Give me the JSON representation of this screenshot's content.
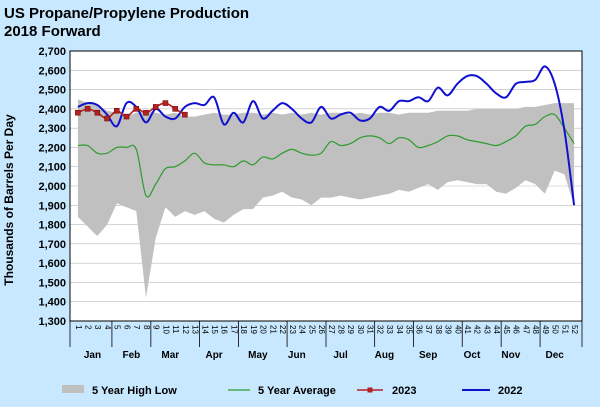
{
  "chart_data": {
    "type": "line",
    "title": "US Propane/Propylene Production",
    "subtitle": "2018 Forward",
    "ylabel": "Thousands of Barrels Per Day",
    "ylim": [
      1300,
      2700
    ],
    "yticks": [
      "1,300",
      "1,400",
      "1,500",
      "1,600",
      "1,700",
      "1,800",
      "1,900",
      "2,000",
      "2,100",
      "2,200",
      "2,300",
      "2,400",
      "2,500",
      "2,600",
      "2,700"
    ],
    "ytick_values": [
      1300,
      1400,
      1500,
      1600,
      1700,
      1800,
      1900,
      2000,
      2100,
      2200,
      2300,
      2400,
      2500,
      2600,
      2700
    ],
    "grid": true,
    "legend_position": "bottom",
    "week_labels": [
      "1",
      "2",
      "3",
      "4",
      "5",
      "6",
      "7",
      "8",
      "9",
      "10",
      "11",
      "12",
      "13",
      "14",
      "15",
      "16",
      "17",
      "18",
      "19",
      "20",
      "21",
      "22",
      "23",
      "24",
      "25",
      "26",
      "27",
      "28",
      "29",
      "30",
      "31",
      "32",
      "33",
      "34",
      "35",
      "36",
      "37",
      "38",
      "39",
      "40",
      "41",
      "42",
      "43",
      "44",
      "45",
      "46",
      "47",
      "48",
      "49",
      "50",
      "51",
      "52"
    ],
    "months": [
      {
        "label": "Jan",
        "week": 2.5
      },
      {
        "label": "Feb",
        "week": 6.5
      },
      {
        "label": "Mar",
        "week": 10.5
      },
      {
        "label": "Apr",
        "week": 15
      },
      {
        "label": "May",
        "week": 19.5
      },
      {
        "label": "Jun",
        "week": 23.5
      },
      {
        "label": "Jul",
        "week": 28
      },
      {
        "label": "Aug",
        "week": 32.5
      },
      {
        "label": "Sep",
        "week": 37
      },
      {
        "label": "Oct",
        "week": 41.5
      },
      {
        "label": "Nov",
        "week": 45.5
      },
      {
        "label": "Dec",
        "week": 50
      }
    ],
    "series": [
      {
        "name": "5 Year High Low",
        "kind": "band",
        "color": "#c0c0c0",
        "high": [
          2450,
          2430,
          2420,
          2390,
          2380,
          2360,
          2380,
          2390,
          2380,
          2370,
          2380,
          2360,
          2360,
          2370,
          2380,
          2370,
          2370,
          2380,
          2380,
          2370,
          2380,
          2370,
          2380,
          2370,
          2380,
          2370,
          2380,
          2380,
          2370,
          2380,
          2370,
          2380,
          2380,
          2370,
          2380,
          2380,
          2380,
          2390,
          2390,
          2390,
          2390,
          2400,
          2400,
          2400,
          2400,
          2400,
          2410,
          2410,
          2420,
          2430,
          2430,
          2430
        ],
        "low": [
          1840,
          1790,
          1740,
          1800,
          1910,
          1890,
          1870,
          1420,
          1730,
          1890,
          1840,
          1870,
          1850,
          1870,
          1830,
          1810,
          1850,
          1880,
          1880,
          1940,
          1950,
          1970,
          1940,
          1930,
          1900,
          1940,
          1940,
          1950,
          1940,
          1930,
          1940,
          1950,
          1960,
          1980,
          1970,
          1990,
          2010,
          1980,
          2020,
          2030,
          2020,
          2010,
          2010,
          1970,
          1960,
          1990,
          2030,
          2010,
          1960,
          2080,
          2060,
          1900
        ]
      },
      {
        "name": "5 Year Average",
        "kind": "line",
        "color": "#2e9b2e",
        "values": [
          2210,
          2210,
          2170,
          2170,
          2200,
          2200,
          2190,
          1950,
          2010,
          2090,
          2100,
          2130,
          2170,
          2120,
          2110,
          2110,
          2100,
          2130,
          2110,
          2150,
          2140,
          2170,
          2190,
          2170,
          2160,
          2170,
          2230,
          2210,
          2220,
          2250,
          2260,
          2250,
          2220,
          2250,
          2240,
          2200,
          2210,
          2230,
          2260,
          2260,
          2240,
          2230,
          2220,
          2210,
          2230,
          2260,
          2310,
          2320,
          2360,
          2370,
          2300,
          2220
        ]
      },
      {
        "name": "2023",
        "kind": "line-markers",
        "color": "#b22222",
        "values": [
          2380,
          2400,
          2380,
          2350,
          2390,
          2360,
          2400,
          2380,
          2410,
          2430,
          2400,
          2370
        ]
      },
      {
        "name": "2022",
        "kind": "line",
        "color": "#1010d0",
        "values": [
          2410,
          2430,
          2420,
          2370,
          2310,
          2430,
          2410,
          2330,
          2400,
          2360,
          2350,
          2410,
          2430,
          2420,
          2460,
          2320,
          2380,
          2330,
          2440,
          2350,
          2390,
          2430,
          2400,
          2350,
          2330,
          2410,
          2350,
          2370,
          2380,
          2340,
          2350,
          2410,
          2390,
          2440,
          2440,
          2460,
          2440,
          2510,
          2470,
          2530,
          2570,
          2570,
          2530,
          2480,
          2460,
          2530,
          2540,
          2550,
          2620,
          2530,
          2290,
          1900
        ]
      }
    ]
  }
}
